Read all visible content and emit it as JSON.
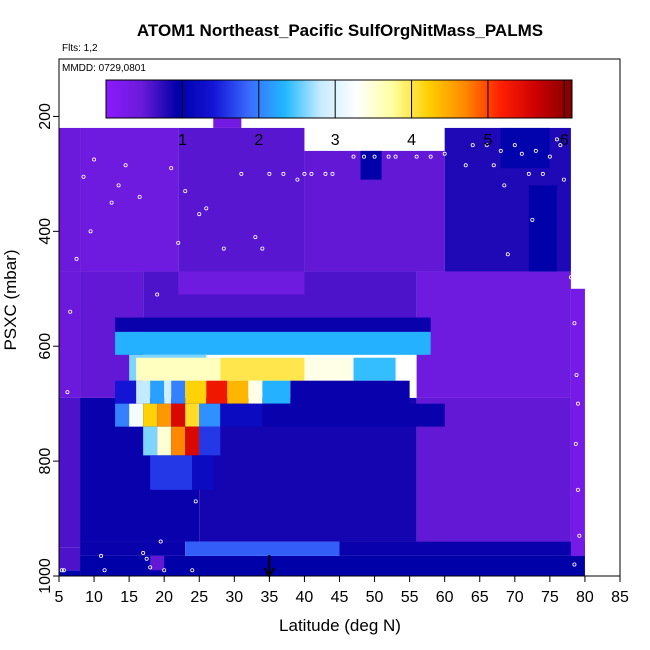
{
  "chart_data": {
    "type": "heatmap",
    "title": "ATOM1 Northeast_Pacific SulfOrgNitMass_PALMS",
    "flights_label": "Flts: 1,2",
    "date_label": "MMDD: 0729,0801",
    "xlabel": "Latitude (deg N)",
    "ylabel": "PSXC (mbar)",
    "xlim": [
      5,
      85
    ],
    "ylim": [
      1000,
      100
    ],
    "y_reversed": true,
    "x_ticks": [
      5,
      10,
      15,
      20,
      25,
      30,
      35,
      40,
      45,
      50,
      55,
      60,
      65,
      70,
      75,
      80,
      85
    ],
    "y_ticks": [
      200,
      400,
      600,
      800,
      1000
    ],
    "colorbar": {
      "min": 0,
      "max": 6.1,
      "ticks": [
        1,
        2,
        3,
        4,
        5,
        6
      ]
    },
    "marker_latitude": 35,
    "colors": {
      "colormap": [
        "#8c1aff",
        "#6a1ad9",
        "#0000a8",
        "#1414d6",
        "#3a6cff",
        "#22b8ff",
        "#c8ecff",
        "#ffffff",
        "#ffffa0",
        "#ffd000",
        "#ff8a00",
        "#ff2000",
        "#cc0000",
        "#800000"
      ]
    },
    "cells": [
      {
        "x": [
          5,
          8
        ],
        "y": [
          990,
          1000
        ],
        "v": 1.0
      },
      {
        "x": [
          8,
          80
        ],
        "y": [
          965,
          1000
        ],
        "v": 0.95
      },
      {
        "x": [
          5,
          8
        ],
        "y": [
          950,
          990
        ],
        "v": 0.6
      },
      {
        "x": [
          8,
          23
        ],
        "y": [
          940,
          965
        ],
        "v": 0.9
      },
      {
        "x": [
          23,
          45
        ],
        "y": [
          940,
          965
        ],
        "v": 1.8
      },
      {
        "x": [
          45,
          80
        ],
        "y": [
          940,
          965
        ],
        "v": 0.9
      },
      {
        "x": [
          18,
          20
        ],
        "y": [
          965,
          990
        ],
        "v": 0.5
      },
      {
        "x": [
          5,
          8
        ],
        "y": [
          690,
          950
        ],
        "v": 0.6
      },
      {
        "x": [
          8,
          25
        ],
        "y": [
          690,
          940
        ],
        "v": 0.9
      },
      {
        "x": [
          25,
          56
        ],
        "y": [
          690,
          940
        ],
        "v": 0.85
      },
      {
        "x": [
          56,
          78
        ],
        "y": [
          690,
          940
        ],
        "v": 0.5
      },
      {
        "x": [
          78,
          80
        ],
        "y": [
          500,
          965
        ],
        "v": 0.3
      },
      {
        "x": [
          5,
          8
        ],
        "y": [
          470,
          690
        ],
        "v": 0.45
      },
      {
        "x": [
          8,
          17
        ],
        "y": [
          470,
          690
        ],
        "v": 0.5
      },
      {
        "x": [
          56,
          78
        ],
        "y": [
          470,
          690
        ],
        "v": 0.4
      },
      {
        "x": [
          17,
          56
        ],
        "y": [
          470,
          580
        ],
        "v": 0.6
      },
      {
        "x": [
          22,
          40
        ],
        "y": [
          470,
          510
        ],
        "v": 0.4
      },
      {
        "x": [
          13,
          58
        ],
        "y": [
          550,
          575
        ],
        "v": 0.9
      },
      {
        "x": [
          13,
          58
        ],
        "y": [
          575,
          615
        ],
        "v": 2.3
      },
      {
        "x": [
          15,
          26
        ],
        "y": [
          615,
          660
        ],
        "v": 2.6
      },
      {
        "x": [
          16,
          28
        ],
        "y": [
          620,
          660
        ],
        "v": 3.6
      },
      {
        "x": [
          28,
          40
        ],
        "y": [
          620,
          660
        ],
        "v": 4.0
      },
      {
        "x": [
          40,
          47
        ],
        "y": [
          620,
          660
        ],
        "v": 3.4
      },
      {
        "x": [
          47,
          53
        ],
        "y": [
          620,
          660
        ],
        "v": 2.4
      },
      {
        "x": [
          13,
          16
        ],
        "y": [
          660,
          700
        ],
        "v": 1.4
      },
      {
        "x": [
          16,
          18
        ],
        "y": [
          660,
          700
        ],
        "v": 2.8
      },
      {
        "x": [
          18,
          20
        ],
        "y": [
          660,
          700
        ],
        "v": 2.2
      },
      {
        "x": [
          20,
          21
        ],
        "y": [
          660,
          700
        ],
        "v": 2.9
      },
      {
        "x": [
          21,
          23
        ],
        "y": [
          660,
          700
        ],
        "v": 2.0
      },
      {
        "x": [
          23,
          26
        ],
        "y": [
          660,
          700
        ],
        "v": 4.2
      },
      {
        "x": [
          26,
          29
        ],
        "y": [
          660,
          700
        ],
        "v": 5.3
      },
      {
        "x": [
          29,
          32
        ],
        "y": [
          660,
          700
        ],
        "v": 4.4
      },
      {
        "x": [
          32,
          34
        ],
        "y": [
          660,
          700
        ],
        "v": 3.4
      },
      {
        "x": [
          34,
          38
        ],
        "y": [
          660,
          700
        ],
        "v": 2.3
      },
      {
        "x": [
          38,
          55
        ],
        "y": [
          660,
          700
        ],
        "v": 0.9
      },
      {
        "x": [
          13,
          15
        ],
        "y": [
          700,
          740
        ],
        "v": 2.0
      },
      {
        "x": [
          15,
          17
        ],
        "y": [
          700,
          740
        ],
        "v": 3.2
      },
      {
        "x": [
          17,
          19
        ],
        "y": [
          700,
          740
        ],
        "v": 4.2
      },
      {
        "x": [
          19,
          21
        ],
        "y": [
          700,
          740
        ],
        "v": 4.6
      },
      {
        "x": [
          21,
          23
        ],
        "y": [
          700,
          740
        ],
        "v": 5.5
      },
      {
        "x": [
          23,
          25
        ],
        "y": [
          700,
          740
        ],
        "v": 4.1
      },
      {
        "x": [
          25,
          28
        ],
        "y": [
          700,
          740
        ],
        "v": 2.1
      },
      {
        "x": [
          28,
          34
        ],
        "y": [
          700,
          740
        ],
        "v": 1.2
      },
      {
        "x": [
          34,
          60
        ],
        "y": [
          700,
          740
        ],
        "v": 0.9
      },
      {
        "x": [
          17,
          19
        ],
        "y": [
          740,
          790
        ],
        "v": 2.6
      },
      {
        "x": [
          19,
          21
        ],
        "y": [
          740,
          790
        ],
        "v": 3.5
      },
      {
        "x": [
          21,
          23
        ],
        "y": [
          740,
          790
        ],
        "v": 4.7
      },
      {
        "x": [
          23,
          25
        ],
        "y": [
          740,
          790
        ],
        "v": 5.5
      },
      {
        "x": [
          25,
          28
        ],
        "y": [
          740,
          790
        ],
        "v": 1.6
      },
      {
        "x": [
          18,
          24
        ],
        "y": [
          790,
          850
        ],
        "v": 1.6
      },
      {
        "x": [
          24,
          27
        ],
        "y": [
          790,
          850
        ],
        "v": 1.2
      },
      {
        "x": [
          5,
          8
        ],
        "y": [
          220,
          470
        ],
        "v": 0.45
      },
      {
        "x": [
          8,
          22
        ],
        "y": [
          220,
          470
        ],
        "v": 0.4
      },
      {
        "x": [
          22,
          40
        ],
        "y": [
          220,
          470
        ],
        "v": 0.55
      },
      {
        "x": [
          40,
          60
        ],
        "y": [
          260,
          470
        ],
        "v": 0.5
      },
      {
        "x": [
          60,
          78
        ],
        "y": [
          220,
          470
        ],
        "v": 0.8
      },
      {
        "x": [
          48,
          51
        ],
        "y": [
          260,
          310
        ],
        "v": 0.95
      },
      {
        "x": [
          68,
          75
        ],
        "y": [
          220,
          290
        ],
        "v": 1.0
      },
      {
        "x": [
          72,
          76
        ],
        "y": [
          320,
          470
        ],
        "v": 0.95
      },
      {
        "x": [
          27,
          31
        ],
        "y": [
          190,
          220
        ],
        "v": 0.35
      }
    ],
    "samples": [
      {
        "lat": 5.4,
        "p": 990
      },
      {
        "lat": 5.7,
        "p": 990
      },
      {
        "lat": 6.2,
        "p": 680
      },
      {
        "lat": 6.6,
        "p": 540
      },
      {
        "lat": 7.5,
        "p": 448
      },
      {
        "lat": 8.5,
        "p": 305
      },
      {
        "lat": 9.5,
        "p": 400
      },
      {
        "lat": 10.0,
        "p": 275
      },
      {
        "lat": 11.0,
        "p": 965
      },
      {
        "lat": 11.5,
        "p": 990
      },
      {
        "lat": 12.5,
        "p": 350
      },
      {
        "lat": 13.5,
        "p": 320
      },
      {
        "lat": 14.5,
        "p": 285
      },
      {
        "lat": 16.5,
        "p": 340
      },
      {
        "lat": 17.0,
        "p": 960
      },
      {
        "lat": 17.5,
        "p": 970
      },
      {
        "lat": 18.0,
        "p": 985
      },
      {
        "lat": 19.0,
        "p": 510
      },
      {
        "lat": 19.5,
        "p": 940
      },
      {
        "lat": 20.0,
        "p": 990
      },
      {
        "lat": 21.0,
        "p": 290
      },
      {
        "lat": 22.0,
        "p": 420
      },
      {
        "lat": 23.0,
        "p": 330
      },
      {
        "lat": 24.0,
        "p": 990
      },
      {
        "lat": 24.5,
        "p": 870
      },
      {
        "lat": 25.0,
        "p": 370
      },
      {
        "lat": 26.0,
        "p": 360
      },
      {
        "lat": 27.0,
        "p": 200
      },
      {
        "lat": 28.0,
        "p": 200
      },
      {
        "lat": 28.5,
        "p": 430
      },
      {
        "lat": 29.0,
        "p": 200
      },
      {
        "lat": 31.0,
        "p": 300
      },
      {
        "lat": 33.0,
        "p": 410
      },
      {
        "lat": 34.0,
        "p": 430
      },
      {
        "lat": 35.0,
        "p": 300
      },
      {
        "lat": 37.0,
        "p": 300
      },
      {
        "lat": 39.0,
        "p": 310
      },
      {
        "lat": 40.0,
        "p": 300
      },
      {
        "lat": 41.0,
        "p": 300
      },
      {
        "lat": 43.0,
        "p": 300
      },
      {
        "lat": 44.0,
        "p": 300
      },
      {
        "lat": 47.0,
        "p": 270
      },
      {
        "lat": 48.5,
        "p": 270
      },
      {
        "lat": 50.0,
        "p": 270
      },
      {
        "lat": 52.0,
        "p": 270
      },
      {
        "lat": 53.0,
        "p": 270
      },
      {
        "lat": 56.0,
        "p": 270
      },
      {
        "lat": 58.0,
        "p": 270
      },
      {
        "lat": 60.0,
        "p": 265
      },
      {
        "lat": 63.0,
        "p": 285
      },
      {
        "lat": 64.0,
        "p": 250
      },
      {
        "lat": 66.0,
        "p": 250
      },
      {
        "lat": 67.0,
        "p": 285
      },
      {
        "lat": 68.0,
        "p": 260
      },
      {
        "lat": 68.5,
        "p": 320
      },
      {
        "lat": 69.0,
        "p": 440
      },
      {
        "lat": 70.0,
        "p": 250
      },
      {
        "lat": 71.0,
        "p": 265
      },
      {
        "lat": 72.0,
        "p": 300
      },
      {
        "lat": 72.5,
        "p": 380
      },
      {
        "lat": 73.0,
        "p": 260
      },
      {
        "lat": 74.0,
        "p": 300
      },
      {
        "lat": 75.0,
        "p": 270
      },
      {
        "lat": 76.0,
        "p": 240
      },
      {
        "lat": 76.5,
        "p": 250
      },
      {
        "lat": 77.0,
        "p": 310
      },
      {
        "lat": 78.0,
        "p": 480
      },
      {
        "lat": 78.5,
        "p": 560
      },
      {
        "lat": 78.8,
        "p": 650
      },
      {
        "lat": 79.0,
        "p": 700
      },
      {
        "lat": 78.7,
        "p": 770
      },
      {
        "lat": 79.0,
        "p": 850
      },
      {
        "lat": 79.2,
        "p": 930
      },
      {
        "lat": 78.5,
        "p": 980
      }
    ]
  }
}
